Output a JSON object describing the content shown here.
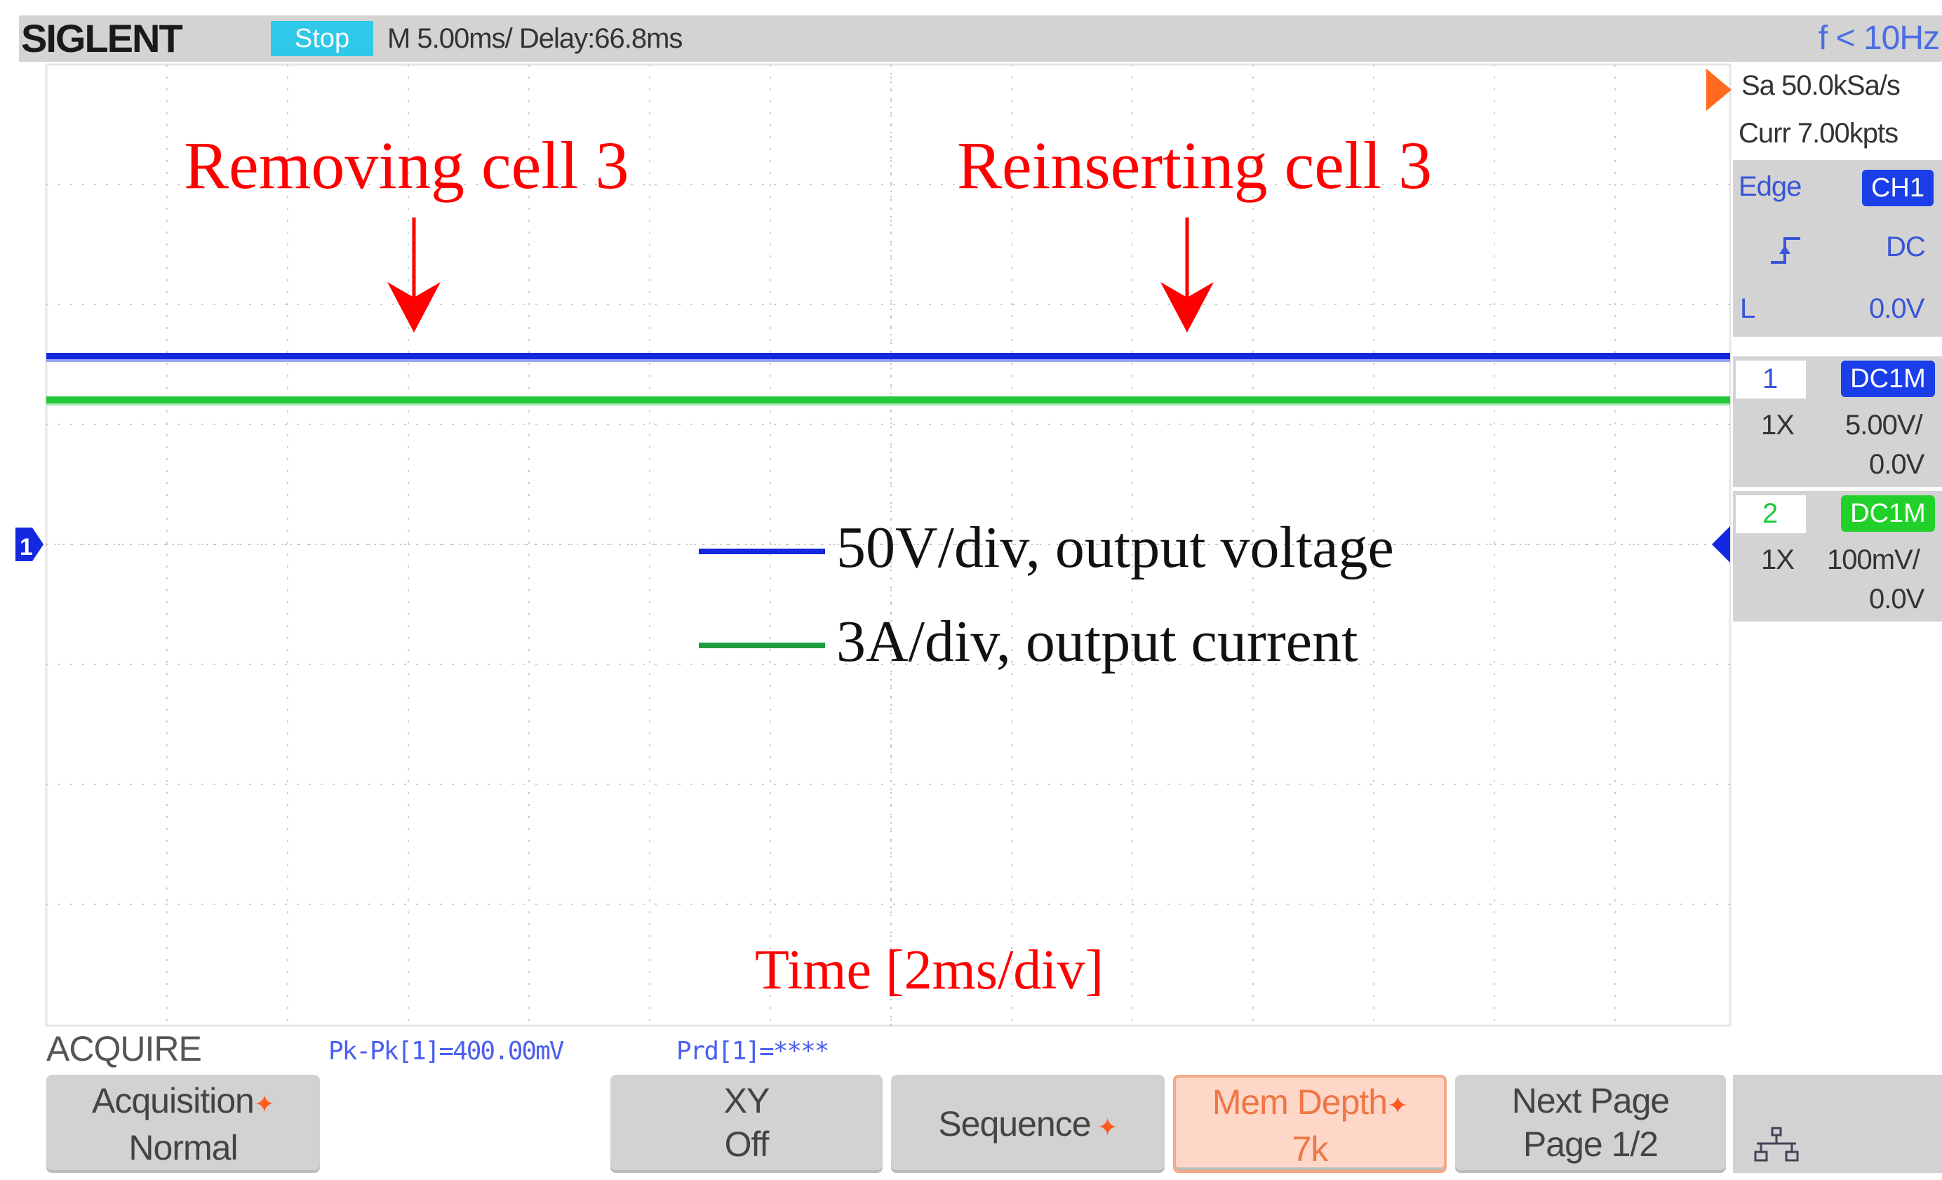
{
  "header": {
    "brand": "SIGLENT",
    "status": "Stop",
    "timebase": "M 5.00ms/ Delay:66.8ms",
    "trigger_freq": "f < 10Hz"
  },
  "acquisition_info": {
    "sample_rate": "Sa 50.0kSa/s",
    "memory": "Curr 7.00kpts"
  },
  "trigger": {
    "type": "Edge",
    "source": "CH1",
    "coupling": "DC",
    "level_label": "L",
    "level": "0.0V"
  },
  "channels": [
    {
      "number": "1",
      "coupling": "DC1M",
      "probe": "1X",
      "scale": "5.00V/",
      "offset": "0.0V",
      "color": "#1428e0"
    },
    {
      "number": "2",
      "coupling": "DC1M",
      "probe": "1X",
      "scale": "100mV/",
      "offset": "0.0V",
      "color": "#1ec81e"
    }
  ],
  "annotations": {
    "removing": "Removing cell 3",
    "reinserting": "Reinserting cell 3",
    "legend_voltage": "50V/div, output voltage",
    "legend_current": "3A/div, output current",
    "time_axis": "Time [2ms/div]"
  },
  "measurements": {
    "menu_title": "ACQUIRE",
    "pkpk": "Pk-Pk[1]=400.00mV",
    "period": "Prd[1]=****"
  },
  "softkeys": [
    {
      "line1": "Acquisition",
      "line2": "Normal"
    },
    {
      "line1": "XY",
      "line2": "Off"
    },
    {
      "line1": "Sequence",
      "line2": ""
    },
    {
      "line1": "Mem Depth",
      "line2": "7k"
    },
    {
      "line1": "Next Page",
      "line2": "Page 1/2"
    }
  ],
  "icons": {
    "network": "network-icon",
    "star": "submenu-star-icon"
  },
  "colors": {
    "annotation_red": "#ff0000",
    "voltage_trace": "#1428e0",
    "current_trace": "#1ec81e",
    "grid": "#c8c8c8"
  }
}
